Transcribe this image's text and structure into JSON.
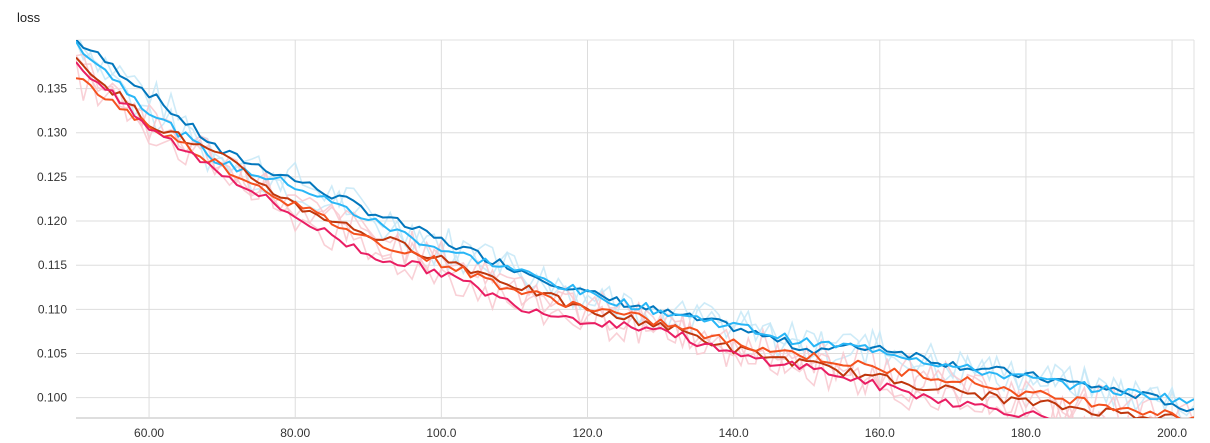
{
  "chart_data": {
    "type": "line",
    "title": "loss",
    "xlabel": "",
    "ylabel": "",
    "xlim": [
      50,
      203
    ],
    "ylim": [
      0.0977,
      0.1405
    ],
    "x_ticks": [
      60,
      80,
      100,
      120,
      140,
      160,
      180,
      200
    ],
    "x_tick_labels": [
      "60.00",
      "80.00",
      "100.0",
      "120.0",
      "140.0",
      "160.0",
      "180.0",
      "200.0"
    ],
    "y_ticks": [
      0.1,
      0.105,
      0.11,
      0.115,
      0.12,
      0.125,
      0.13,
      0.135
    ],
    "y_tick_labels": [
      "0.100",
      "0.105",
      "0.110",
      "0.115",
      "0.120",
      "0.125",
      "0.130",
      "0.135"
    ],
    "grid": true,
    "legend": "none",
    "colors": {
      "series_0": "#0277bd",
      "series_1": "#29b6f6",
      "series_2": "#bf360c",
      "series_3": "#f4511e",
      "series_4": "#e91e63",
      "raw_light_blue": "#c5e8f7",
      "raw_light_red": "#f8c8cf",
      "grid": "#dddddd"
    },
    "series": [
      {
        "x": [
          50,
          60,
          70,
          80,
          90,
          100,
          110,
          120,
          130,
          140,
          150,
          160,
          170,
          180,
          190,
          200,
          203
        ],
        "values": [
          0.1405,
          0.1345,
          0.1278,
          0.1247,
          0.1212,
          0.1178,
          0.1147,
          0.1118,
          0.1097,
          0.108,
          0.1055,
          0.1058,
          0.1038,
          0.1025,
          0.1012,
          0.0995,
          0.0982
        ]
      },
      {
        "x": [
          50,
          60,
          70,
          80,
          90,
          100,
          110,
          120,
          130,
          140,
          150,
          160,
          170,
          180,
          190,
          200,
          203
        ],
        "values": [
          0.1402,
          0.1325,
          0.1265,
          0.124,
          0.1202,
          0.1168,
          0.1145,
          0.1117,
          0.1098,
          0.1082,
          0.1062,
          0.1055,
          0.1035,
          0.1022,
          0.101,
          0.1,
          0.0994
        ]
      },
      {
        "x": [
          50,
          60,
          70,
          80,
          90,
          100,
          110,
          120,
          130,
          140,
          150,
          160,
          170,
          180,
          190,
          200,
          203
        ],
        "values": [
          0.1385,
          0.1312,
          0.1272,
          0.1218,
          0.1185,
          0.1158,
          0.1128,
          0.1098,
          0.1083,
          0.1055,
          0.1038,
          0.1022,
          0.1008,
          0.0995,
          0.0985,
          0.0978,
          0.0972
        ]
      },
      {
        "x": [
          50,
          60,
          70,
          80,
          90,
          100,
          110,
          120,
          130,
          140,
          150,
          160,
          170,
          180,
          190,
          200,
          203
        ],
        "values": [
          0.1362,
          0.1308,
          0.1262,
          0.1218,
          0.118,
          0.1153,
          0.1122,
          0.1102,
          0.1085,
          0.1062,
          0.1048,
          0.1032,
          0.1022,
          0.1005,
          0.0994,
          0.098,
          0.0978
        ]
      },
      {
        "x": [
          50,
          60,
          70,
          80,
          90,
          100,
          110,
          120,
          130,
          140,
          150,
          160,
          170,
          180,
          190,
          200,
          203
        ],
        "values": [
          0.138,
          0.1305,
          0.1255,
          0.1205,
          0.1162,
          0.1142,
          0.1105,
          0.1087,
          0.1078,
          0.1048,
          0.1035,
          0.1013,
          0.0995,
          0.0982,
          0.0968,
          0.0958,
          0.0955
        ]
      }
    ]
  }
}
